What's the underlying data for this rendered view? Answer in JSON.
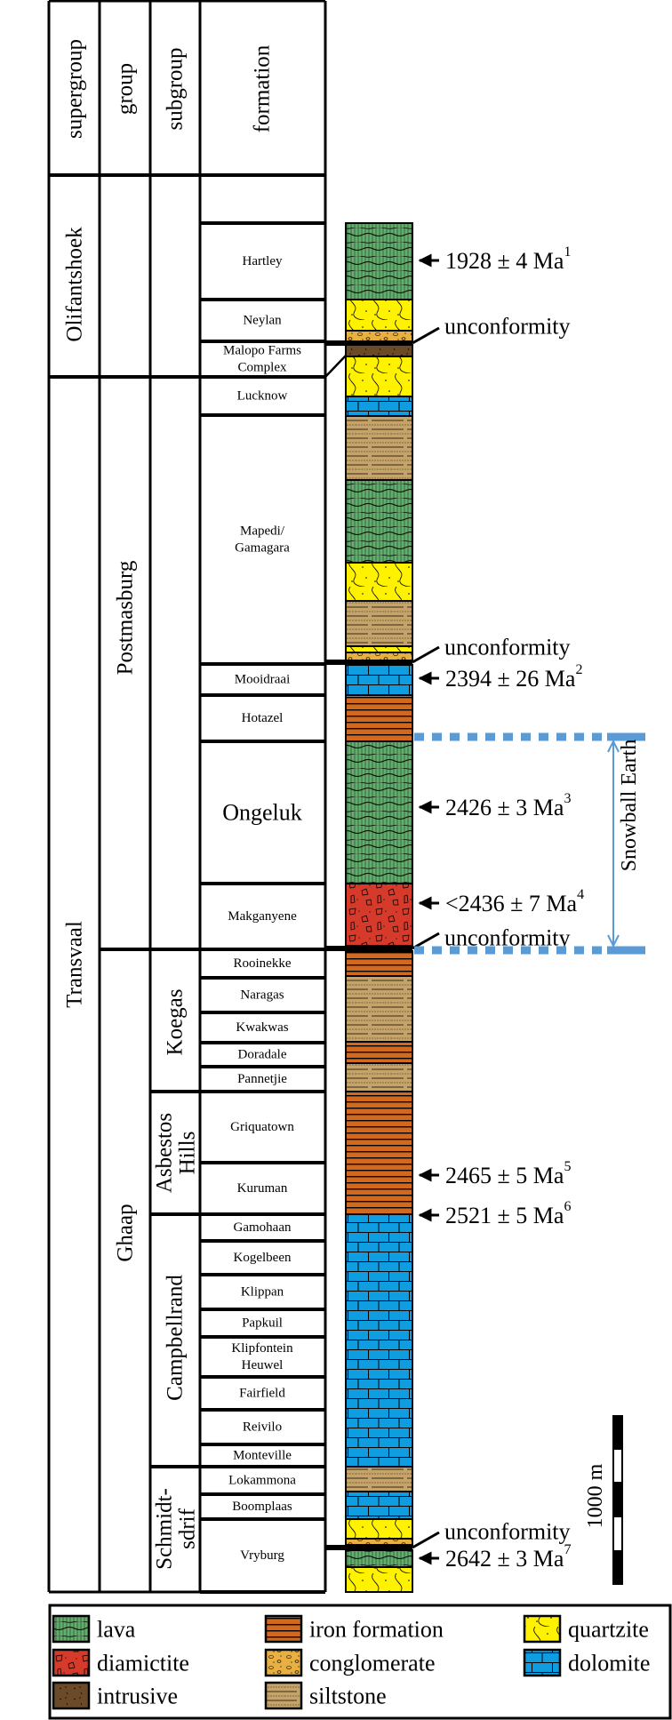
{
  "header": {
    "supergroup": "supergroup",
    "group": "group",
    "subgroup": "subgroup",
    "formation": "formation"
  },
  "supergroups": [
    "Olifantshoek",
    "Transvaal"
  ],
  "groups": [
    "Postmasburg",
    "Ghaap"
  ],
  "subgroups": [
    "Koegas",
    "Asbestos",
    "Hills",
    "Campbellrand",
    "Schmidt-",
    "sdrif"
  ],
  "formations": [
    [
      "Hartley"
    ],
    [
      "Neylan"
    ],
    [
      "Malopo Farms",
      "Complex"
    ],
    [
      "Lucknow"
    ],
    [
      "Mapedi/",
      "Gamagara"
    ],
    [
      "Mooidraai"
    ],
    [
      "Hotazel"
    ],
    [
      "Ongeluk"
    ],
    [
      "Makganyene"
    ],
    [
      "Rooinekke"
    ],
    [
      "Naragas"
    ],
    [
      "Kwakwas"
    ],
    [
      "Doradale"
    ],
    [
      "Pannetjie"
    ],
    [
      "Griquatown"
    ],
    [
      "Kuruman"
    ],
    [
      "Gamohaan"
    ],
    [
      "Kogelbeen"
    ],
    [
      "Klippan"
    ],
    [
      "Papkuil"
    ],
    [
      "Klipfontein",
      "Heuwel"
    ],
    [
      "Fairfield"
    ],
    [
      "Reivilo"
    ],
    [
      "Monteville"
    ],
    [
      "Lokammona"
    ],
    [
      "Boomplaas"
    ],
    [
      "Vryburg"
    ]
  ],
  "lithology_sequence": [
    "lava",
    "quartzite",
    "conglomerate",
    "intrusive",
    "quartzite",
    "dolomite",
    "siltstone",
    "lava",
    "quartzite",
    "siltstone",
    "quartzite",
    "conglomerate",
    "dolomite",
    "iron formation",
    "lava",
    "diamictite",
    "iron formation",
    "siltstone",
    "iron formation",
    "siltstone",
    "iron formation",
    "dolomite",
    "siltstone",
    "dolomite",
    "quartzite",
    "conglomerate",
    "lava",
    "quartzite"
  ],
  "ages": [
    {
      "text": "1928 ± 4 Ma",
      "ref": "1"
    },
    {
      "text": "2394 ± 26 Ma",
      "ref": "2"
    },
    {
      "text": "2426 ± 3 Ma",
      "ref": "3"
    },
    {
      "text": "<2436 ± 7 Ma",
      "ref": "4"
    },
    {
      "text": "2465 ± 5 Ma",
      "ref": "5"
    },
    {
      "text": "2521 ± 5 Ma",
      "ref": "6"
    },
    {
      "text": "2642 ± 3 Ma",
      "ref": "7"
    }
  ],
  "unconformity_label": "unconformity",
  "snowball_label": "Snowball Earth",
  "scale_label": "1000 m",
  "legend": [
    {
      "label": "lava",
      "pattern": "lava"
    },
    {
      "label": "diamictite",
      "pattern": "diamictite"
    },
    {
      "label": "intrusive",
      "pattern": "intrusive"
    },
    {
      "label": "iron formation",
      "pattern": "iron"
    },
    {
      "label": "conglomerate",
      "pattern": "conglomerate"
    },
    {
      "label": "siltstone",
      "pattern": "siltstone"
    },
    {
      "label": "quartzite",
      "pattern": "quartzite"
    },
    {
      "label": "dolomite",
      "pattern": "dolomite"
    }
  ],
  "colors": {
    "lava": "#62ae6e",
    "quartzite": "#fff200",
    "siltstone": "#c4a46a",
    "dolomite": "#0f9de0",
    "iron": "#d2691e",
    "diamictite": "#d63a2a",
    "conglomerate": "#e8b040",
    "intrusive": "#6b4a2a",
    "snowball": "#5b9bd5"
  }
}
